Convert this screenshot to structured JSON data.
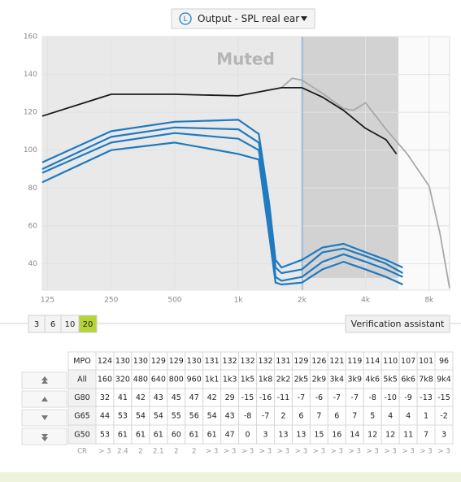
{
  "header": {
    "channel": "L",
    "view": "Output - SPL real ear"
  },
  "chart_data": {
    "type": "line",
    "annotation": "Muted",
    "log_x": true,
    "grid": true,
    "xlim": [
      118,
      10000
    ],
    "ylim": [
      26,
      160
    ],
    "xticks": [
      125,
      250,
      500,
      {
        "value": 1000,
        "label": "1k"
      },
      {
        "value": 2000,
        "label": "2k"
      },
      {
        "value": 4000,
        "label": "4k"
      },
      {
        "value": 8000,
        "label": "8k"
      }
    ],
    "yticks": [
      40,
      60,
      80,
      100,
      120,
      140,
      160
    ],
    "series": [
      {
        "color": "#a8a8a8",
        "x": [
          1600,
          1800,
          2000,
          2500,
          3150,
          3500,
          4000,
          5000,
          6300,
          8000,
          9000,
          10000
        ],
        "values": [
          133,
          138,
          137,
          130,
          122,
          121,
          125,
          111,
          98,
          81,
          56,
          27
        ]
      },
      {
        "color": "#1a1a1a",
        "x": [
          118,
          250,
          500,
          1000,
          1600,
          2000,
          2500,
          3150,
          4000,
          5000,
          5600
        ],
        "values": [
          118,
          129.5,
          129.5,
          128.7,
          133,
          133,
          128,
          121,
          111.5,
          105.5,
          98
        ]
      },
      {
        "color": "#1f7ac0",
        "x": [
          118,
          250,
          500,
          1000,
          1250,
          1400,
          1500,
          1600,
          2000,
          2500,
          3150,
          4000,
          5000,
          6000
        ],
        "values": [
          93.5,
          110,
          115,
          116,
          108.5,
          72,
          42,
          38,
          42,
          48.5,
          50.5,
          46,
          42,
          38
        ]
      },
      {
        "color": "#1f7ac0",
        "x": [
          118,
          250,
          500,
          1000,
          1250,
          1400,
          1500,
          1600,
          2000,
          2500,
          3150,
          4000,
          5000,
          6000
        ],
        "values": [
          90,
          107,
          112,
          111,
          104,
          68,
          38,
          35,
          37,
          46,
          48,
          44,
          40,
          35
        ]
      },
      {
        "color": "#1f7ac0",
        "x": [
          118,
          250,
          500,
          1000,
          1250,
          1400,
          1500,
          1600,
          2000,
          2500,
          3150,
          4000,
          5000,
          6000
        ],
        "values": [
          88,
          104,
          109,
          106,
          100,
          62,
          33,
          31,
          33,
          41,
          45,
          41,
          37,
          33
        ]
      },
      {
        "color": "#1f7ac0",
        "x": [
          118,
          250,
          500,
          1000,
          1250,
          1400,
          1500,
          1600,
          2000,
          2500,
          3150,
          4000,
          5000,
          6000
        ],
        "values": [
          83,
          100,
          104,
          98,
          95,
          55,
          30,
          29,
          30,
          37,
          41,
          37,
          33,
          29
        ]
      }
    ]
  },
  "controls": {
    "channels": [
      "3",
      "6",
      "10",
      "20"
    ],
    "selected_index": 3,
    "verification": "Verification assistant"
  },
  "table": {
    "rows": [
      [
        "MPO",
        "124",
        "130",
        "130",
        "129",
        "129",
        "130",
        "131",
        "132",
        "132",
        "132",
        "131",
        "129",
        "126",
        "121",
        "119",
        "114",
        "110",
        "107",
        "101",
        "96"
      ],
      [
        "All",
        "160",
        "320",
        "480",
        "640",
        "800",
        "960",
        "1k1",
        "1k3",
        "1k5",
        "1k8",
        "2k2",
        "2k5",
        "2k9",
        "3k4",
        "3k9",
        "4k6",
        "5k5",
        "6k6",
        "7k8",
        "9k4"
      ],
      [
        "G80",
        "32",
        "41",
        "42",
        "43",
        "45",
        "47",
        "42",
        "29",
        "-15",
        "-16",
        "-11",
        "-7",
        "-6",
        "-7",
        "-7",
        "-8",
        "-10",
        "-9",
        "-13",
        "-15"
      ],
      [
        "G65",
        "44",
        "53",
        "54",
        "54",
        "55",
        "56",
        "54",
        "43",
        "-8",
        "-7",
        "2",
        "6",
        "7",
        "6",
        "7",
        "5",
        "4",
        "4",
        "1",
        "-2"
      ],
      [
        "G50",
        "53",
        "61",
        "61",
        "61",
        "60",
        "61",
        "61",
        "47",
        "0",
        "3",
        "13",
        "13",
        "15",
        "16",
        "14",
        "12",
        "12",
        "11",
        "7",
        "3"
      ],
      [
        "CR",
        "> 3",
        "2.4",
        "2",
        "2.1",
        "2",
        "2",
        "> 3",
        "> 3",
        "> 3",
        "> 3",
        "> 3",
        "> 3",
        "> 3",
        "> 3",
        "> 3",
        "> 3",
        "> 3",
        "> 3",
        "> 3",
        "> 3"
      ]
    ]
  }
}
